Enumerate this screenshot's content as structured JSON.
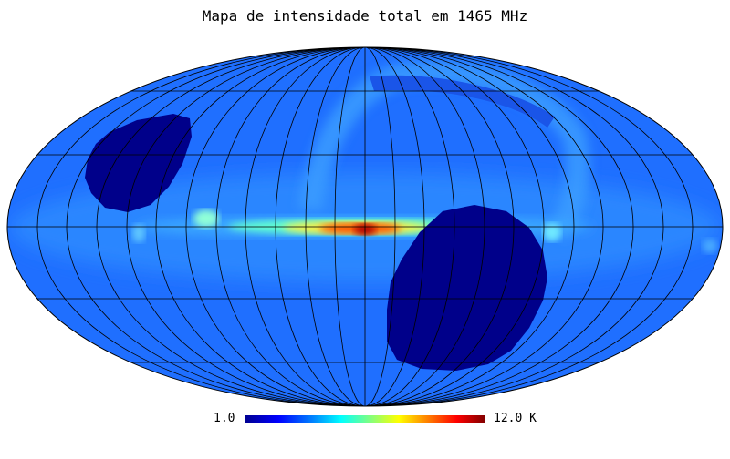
{
  "title": "Mapa de intensidade total em 1465 MHz",
  "colorbar": {
    "min_label": "1.0",
    "max_label": "12.0 K",
    "colors": [
      "#00008f",
      "#0000ff",
      "#0080ff",
      "#00ffff",
      "#80ff80",
      "#ffff00",
      "#ff8000",
      "#ff0000",
      "#800000"
    ]
  },
  "map": {
    "projection": "mollweide",
    "background_color": "#1f6fff",
    "ocean_color": "#ffffff",
    "masked_color": "#00008a",
    "grid": true,
    "colors": {
      "galactic_plane_core": "#b00000",
      "galactic_plane_hot": "#ff4000",
      "galactic_plane_warm": "#ffee40",
      "galactic_plane_cool": "#60ffd0",
      "spur": "#3a9cff",
      "hotspot": "#90ffd8"
    }
  }
}
